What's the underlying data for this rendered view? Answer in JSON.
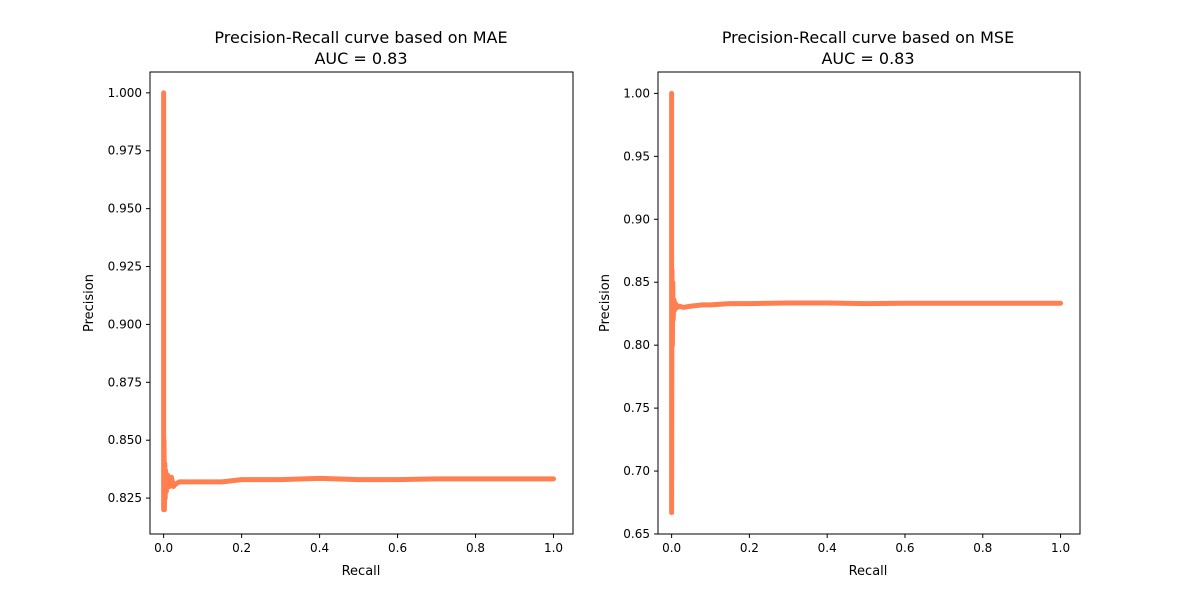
{
  "colors": {
    "curve": "#ff7f50",
    "axes": "#000000",
    "background": "#ffffff"
  },
  "chart_data": [
    {
      "type": "line",
      "title": "Precision-Recall curve based on MAE",
      "subtitle": "AUC = 0.83",
      "xlabel": "Recall",
      "ylabel": "Precision",
      "xlim": [
        -0.035,
        1.05
      ],
      "ylim": [
        0.8095,
        1.009
      ],
      "xticks": [
        0.0,
        0.2,
        0.4,
        0.6,
        0.8,
        1.0
      ],
      "xtick_labels": [
        "0.0",
        "0.2",
        "0.4",
        "0.6",
        "0.8",
        "1.0"
      ],
      "yticks": [
        0.825,
        0.85,
        0.875,
        0.9,
        0.925,
        0.95,
        0.975,
        1.0
      ],
      "ytick_labels": [
        "0.825",
        "0.850",
        "0.875",
        "0.900",
        "0.925",
        "0.950",
        "0.975",
        "1.000"
      ],
      "grid": false,
      "series": [
        {
          "color": "#ff7f50",
          "x": [
            0.0,
            0.0,
            0.001,
            0.002,
            0.003,
            0.004,
            0.005,
            0.007,
            0.01,
            0.015,
            0.02,
            0.025,
            0.03,
            0.04,
            0.06,
            0.08,
            0.1,
            0.15,
            0.2,
            0.3,
            0.4,
            0.5,
            0.6,
            0.7,
            0.8,
            0.9,
            1.0
          ],
          "y": [
            1.0,
            0.82,
            0.85,
            0.82,
            0.84,
            0.825,
            0.837,
            0.828,
            0.835,
            0.83,
            0.834,
            0.83,
            0.831,
            0.832,
            0.832,
            0.832,
            0.832,
            0.832,
            0.833,
            0.833,
            0.8335,
            0.833,
            0.833,
            0.8333,
            0.8333,
            0.8333,
            0.8333
          ]
        }
      ]
    },
    {
      "type": "line",
      "title": "Precision-Recall curve based on MSE",
      "subtitle": "AUC = 0.83",
      "xlabel": "Recall",
      "ylabel": "Precision",
      "xlim": [
        -0.035,
        1.05
      ],
      "ylim": [
        0.65,
        1.017
      ],
      "xticks": [
        0.0,
        0.2,
        0.4,
        0.6,
        0.8,
        1.0
      ],
      "xtick_labels": [
        "0.0",
        "0.2",
        "0.4",
        "0.6",
        "0.8",
        "1.0"
      ],
      "yticks": [
        0.65,
        0.7,
        0.75,
        0.8,
        0.85,
        0.9,
        0.95,
        1.0
      ],
      "ytick_labels": [
        "0.65",
        "0.70",
        "0.75",
        "0.80",
        "0.85",
        "0.90",
        "0.95",
        "1.00"
      ],
      "grid": false,
      "series": [
        {
          "color": "#ff7f50",
          "x": [
            0.0,
            0.0,
            0.001,
            0.002,
            0.003,
            0.004,
            0.006,
            0.008,
            0.01,
            0.015,
            0.02,
            0.03,
            0.05,
            0.08,
            0.1,
            0.15,
            0.2,
            0.3,
            0.4,
            0.5,
            0.6,
            0.7,
            0.8,
            0.9,
            1.0
          ],
          "y": [
            1.0,
            0.667,
            0.86,
            0.8,
            0.85,
            0.82,
            0.836,
            0.828,
            0.833,
            0.83,
            0.831,
            0.83,
            0.831,
            0.832,
            0.832,
            0.833,
            0.833,
            0.8335,
            0.8335,
            0.833,
            0.8333,
            0.8333,
            0.8333,
            0.8333,
            0.8333
          ]
        }
      ]
    }
  ]
}
